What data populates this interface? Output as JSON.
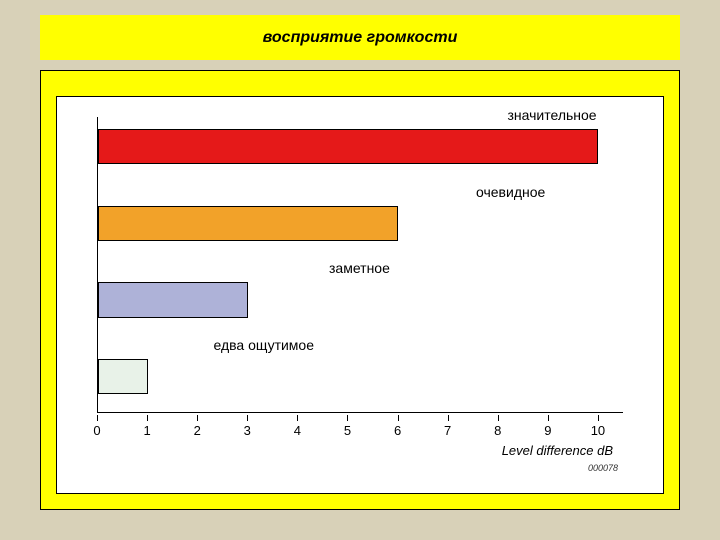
{
  "page": {
    "background_color": "#d8d1b8",
    "texture_note": "woven/linen beige texture approximated as flat color"
  },
  "title": {
    "text": "восприятие громкости",
    "bg_color": "#ffff00",
    "font_color": "#000000",
    "font_size_pt": 16,
    "font_style": "bold italic"
  },
  "chart_outer": {
    "bg_color": "#ffff00",
    "border_color": "#000000"
  },
  "chart": {
    "type": "bar-horizontal",
    "background_color": "#ffffff",
    "border_color": "#000000",
    "x_axis": {
      "label": "Level difference dB",
      "label_fontsize_pt": 12,
      "label_fontstyle": "italic",
      "xlim": [
        0,
        10.5
      ],
      "ticks": [
        0,
        1,
        2,
        3,
        4,
        5,
        6,
        7,
        8,
        9,
        10
      ],
      "tick_fontsize_pt": 12
    },
    "bars": [
      {
        "label": "значительное",
        "value": 10,
        "fill": "#e51919",
        "top_pct": 4,
        "height_pct": 12,
        "label_offset_pct": 78
      },
      {
        "label": "очевидное",
        "value": 6,
        "fill": "#f2a229",
        "top_pct": 30,
        "height_pct": 12,
        "label_offset_pct": 72
      },
      {
        "label": "заметное",
        "value": 3,
        "fill": "#aeb2d8",
        "top_pct": 56,
        "height_pct": 12,
        "label_offset_pct": 44
      },
      {
        "label": "едва ощутимое",
        "value": 1,
        "fill": "#e8f2e8",
        "top_pct": 82,
        "height_pct": 12,
        "label_offset_pct": 22
      }
    ],
    "small_id": "000078"
  }
}
